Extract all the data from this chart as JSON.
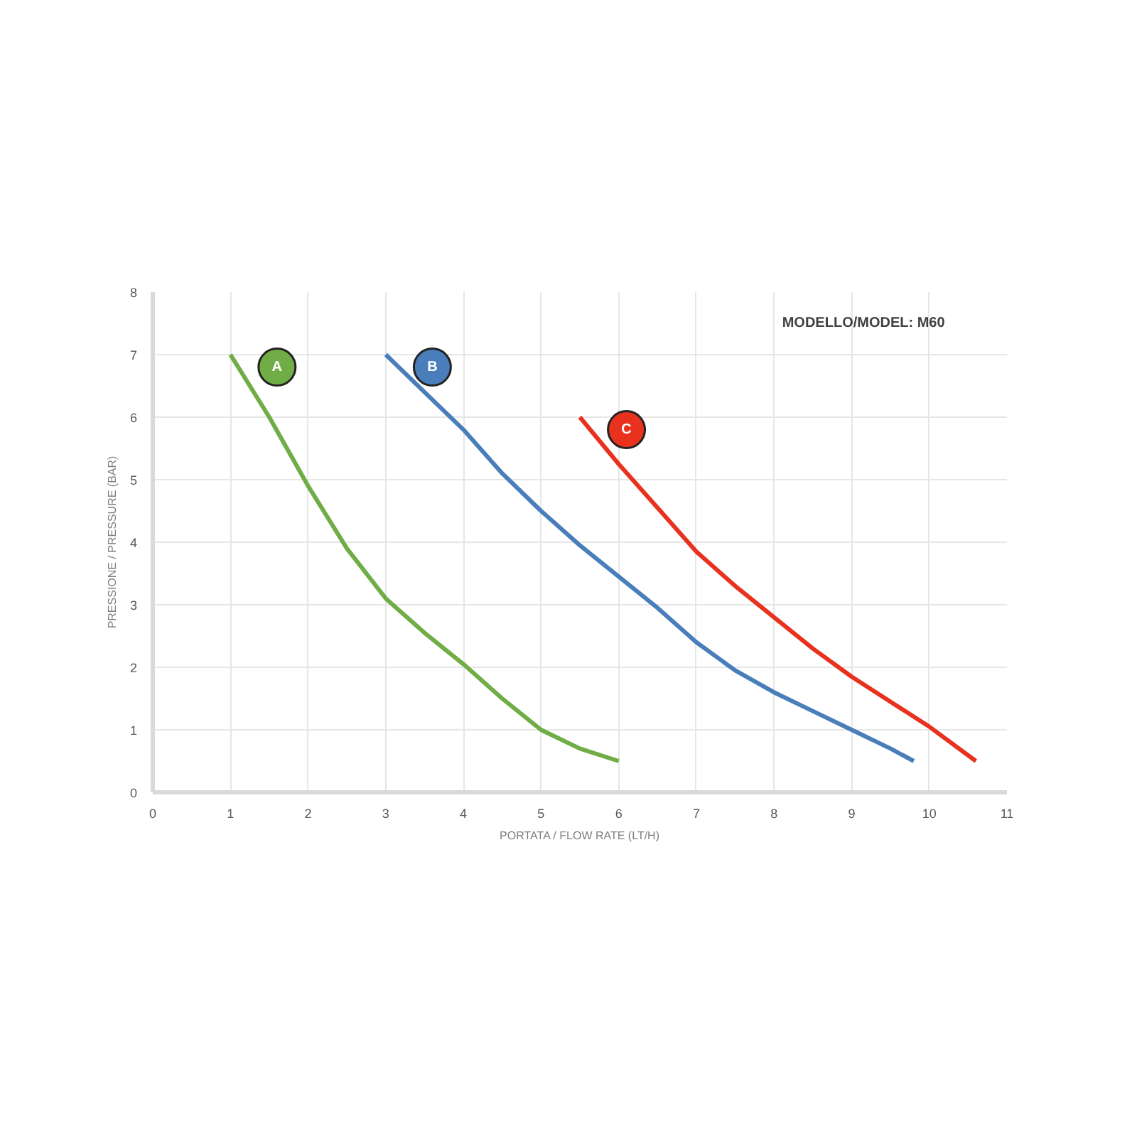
{
  "chart_data": {
    "type": "line",
    "xlabel": "PORTATA / FLOW RATE (LT/H)",
    "ylabel": "PRESSIONE / PRESSURE (BAR)",
    "annotations": [
      "MODELLO/MODEL: M60"
    ],
    "xlim": [
      0,
      11
    ],
    "ylim": [
      0,
      8
    ],
    "xticks": [
      0,
      1,
      2,
      3,
      4,
      5,
      6,
      7,
      8,
      9,
      10,
      11
    ],
    "yticks": [
      0,
      1,
      2,
      3,
      4,
      5,
      6,
      7,
      8
    ],
    "grid": true,
    "series": [
      {
        "name": "A",
        "color": "#70ad47",
        "x": [
          1,
          1.5,
          2,
          2.5,
          3,
          3.5,
          4,
          4.5,
          5,
          5.5,
          6
        ],
        "values": [
          7,
          6,
          4.9,
          3.9,
          3.1,
          2.55,
          2.05,
          1.5,
          1.0,
          0.7,
          0.5
        ]
      },
      {
        "name": "B",
        "color": "#4a7ebb",
        "x": [
          3,
          3.5,
          4,
          4.5,
          5,
          5.5,
          6,
          6.5,
          7,
          7.5,
          8,
          8.5,
          9,
          9.5,
          9.8
        ],
        "values": [
          7,
          6.4,
          5.8,
          5.1,
          4.5,
          3.95,
          3.45,
          2.95,
          2.4,
          1.95,
          1.6,
          1.3,
          1.0,
          0.7,
          0.5
        ]
      },
      {
        "name": "C",
        "color": "#e8321e",
        "x": [
          5.5,
          6,
          6.5,
          7,
          7.5,
          8,
          8.5,
          9,
          9.5,
          10,
          10.6
        ],
        "values": [
          6,
          5.25,
          4.55,
          3.85,
          3.3,
          2.8,
          2.3,
          1.85,
          1.45,
          1.05,
          0.5
        ]
      }
    ]
  }
}
